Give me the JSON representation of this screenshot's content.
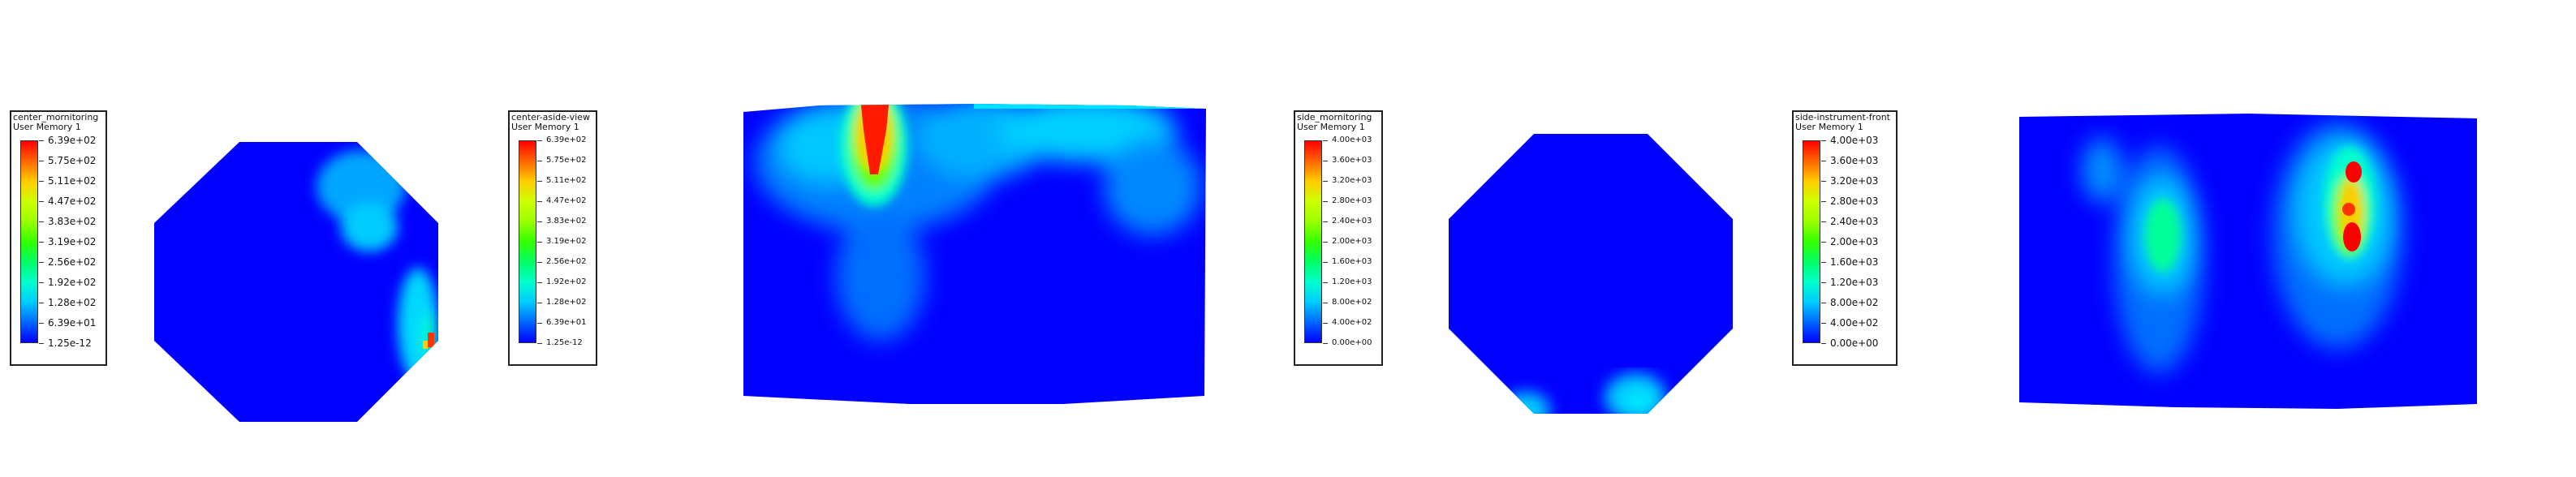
{
  "panels": [
    {
      "legend_title": "center_mornitoring",
      "legend_sub": "User Memory 1",
      "ticks": [
        "6.39e+02",
        "5.75e+02",
        "5.11e+02",
        "4.47e+02",
        "3.83e+02",
        "3.19e+02",
        "2.56e+02",
        "1.92e+02",
        "1.28e+02",
        "6.39e+01",
        "1.25e-12"
      ]
    },
    {
      "legend_title": "center-aside-view",
      "legend_sub": "User Memory 1",
      "ticks": [
        "6.39e+02",
        "5.75e+02",
        "5.11e+02",
        "4.47e+02",
        "3.83e+02",
        "3.19e+02",
        "2.56e+02",
        "1.92e+02",
        "1.28e+02",
        "6.39e+01",
        "1.25e-12"
      ]
    },
    {
      "legend_title": "side_mornitoring",
      "legend_sub": "User Memory 1",
      "ticks": [
        "4.00e+03",
        "3.60e+03",
        "3.20e+03",
        "2.80e+03",
        "2.40e+03",
        "2.00e+03",
        "1.60e+03",
        "1.20e+03",
        "8.00e+02",
        "4.00e+02",
        "0.00e+00"
      ]
    },
    {
      "legend_title": "side-instrument-front",
      "legend_sub": "User Memory 1",
      "ticks": [
        "4.00e+03",
        "3.60e+03",
        "3.20e+03",
        "2.80e+03",
        "2.40e+03",
        "2.00e+03",
        "1.60e+03",
        "1.20e+03",
        "8.00e+02",
        "4.00e+02",
        "0.00e+00"
      ]
    }
  ],
  "colors": {
    "base": "#0000ff",
    "low": "#00ccff",
    "mid": "#00ff66",
    "high": "#ff0000"
  }
}
